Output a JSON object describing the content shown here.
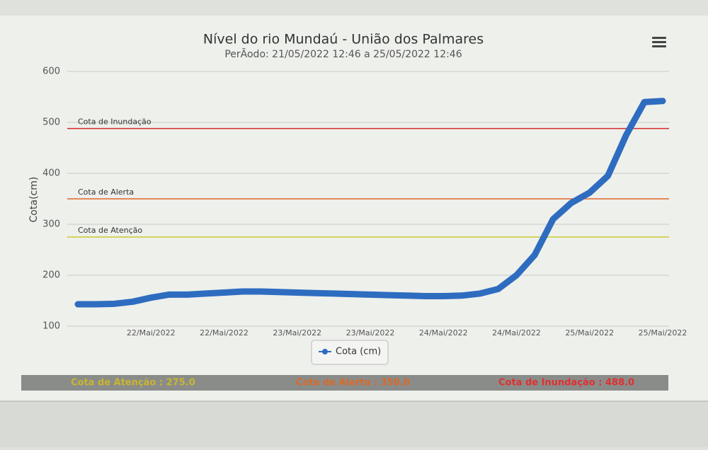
{
  "chart_data": {
    "type": "line",
    "title": "Nível do rio Mundaú - União dos Palmares",
    "subtitle": "PerÃodo: 21/05/2022 12:46 a 25/05/2022 12:46",
    "y_label": "Cota(cm)",
    "categories": [
      null,
      null,
      null,
      null,
      "22/Mai/2022",
      null,
      null,
      null,
      "22/Mai/2022",
      null,
      null,
      null,
      "23/Mai/2022",
      null,
      null,
      null,
      "23/Mai/2022",
      null,
      null,
      null,
      "24/Mai/2022",
      null,
      null,
      null,
      "24/Mai/2022",
      null,
      null,
      null,
      "25/Mai/2022",
      null,
      null,
      null,
      "25/Mai/2022"
    ],
    "series": [
      {
        "name": "Cota (cm)",
        "color": "#2e6cc0",
        "values": [
          143,
          143,
          144,
          148,
          156,
          162,
          162,
          164,
          166,
          168,
          168,
          167,
          166,
          165,
          164,
          163,
          162,
          161,
          160,
          159,
          159,
          160,
          164,
          173,
          200,
          240,
          310,
          342,
          362,
          395,
          475,
          540,
          542
        ]
      }
    ],
    "ylim": [
      100,
      600
    ],
    "yticks": [
      100,
      200,
      300,
      400,
      500,
      600
    ],
    "grid": true,
    "plot_lines": [
      {
        "label": "Cota de Inundação",
        "value": 488,
        "color": "#d42a2a"
      },
      {
        "label": "Cota de Alerta",
        "value": 350,
        "color": "#e0662a"
      },
      {
        "label": "Cota de Atenção",
        "value": 275,
        "color": "#c9c92a"
      }
    ],
    "footer": [
      {
        "text": "Cota de Atenção : 275.0",
        "color": "#c9b530"
      },
      {
        "text": "Cota de Alerta : 350.0",
        "color": "#d86a2a"
      },
      {
        "text": "Cota de Inundação : 488.0",
        "color": "#e03030"
      }
    ]
  }
}
